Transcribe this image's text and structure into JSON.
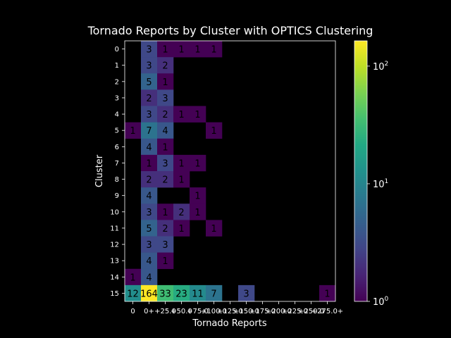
{
  "chart_data": {
    "type": "heatmap",
    "title": "Tornado Reports by Cluster with OPTICS Clustering",
    "xlabel": "Tornado Reports",
    "ylabel": "Cluster",
    "x_categories": [
      "0",
      "0+",
      "+25.0",
      "+50.0",
      "+75.0",
      "+100.0",
      "+125.0",
      "+150.0",
      "+175.0",
      "+200.0",
      "+225.0",
      "+250.0",
      "+275.0+"
    ],
    "x_tick_labels": [
      "0",
      "0+",
      "+25.0",
      "+50.0",
      "+75.0",
      "+100.0",
      "+125.0",
      "+150.0",
      "+175.0",
      "+200.0",
      "+225.0",
      "+250.0",
      "+275.0+"
    ],
    "y_categories": [
      "0",
      "1",
      "2",
      "3",
      "4",
      "5",
      "6",
      "7",
      "8",
      "9",
      "10",
      "11",
      "12",
      "13",
      "14",
      "15"
    ],
    "values": [
      [
        null,
        3,
        1,
        1,
        1,
        1,
        null,
        null,
        null,
        null,
        null,
        null,
        null
      ],
      [
        null,
        3,
        2,
        null,
        null,
        null,
        null,
        null,
        null,
        null,
        null,
        null,
        null
      ],
      [
        null,
        5,
        1,
        null,
        null,
        null,
        null,
        null,
        null,
        null,
        null,
        null,
        null
      ],
      [
        null,
        2,
        3,
        null,
        null,
        null,
        null,
        null,
        null,
        null,
        null,
        null,
        null
      ],
      [
        null,
        3,
        2,
        1,
        1,
        null,
        null,
        null,
        null,
        null,
        null,
        null,
        null
      ],
      [
        1,
        7,
        4,
        null,
        null,
        1,
        null,
        null,
        null,
        null,
        null,
        null,
        null
      ],
      [
        null,
        4,
        1,
        null,
        null,
        null,
        null,
        null,
        null,
        null,
        null,
        null,
        null
      ],
      [
        null,
        1,
        3,
        1,
        1,
        null,
        null,
        null,
        null,
        null,
        null,
        null,
        null
      ],
      [
        null,
        2,
        2,
        1,
        null,
        null,
        null,
        null,
        null,
        null,
        null,
        null,
        null
      ],
      [
        null,
        4,
        null,
        null,
        1,
        null,
        null,
        null,
        null,
        null,
        null,
        null,
        null
      ],
      [
        null,
        3,
        1,
        2,
        1,
        null,
        null,
        null,
        null,
        null,
        null,
        null,
        null
      ],
      [
        null,
        5,
        2,
        1,
        null,
        1,
        null,
        null,
        null,
        null,
        null,
        null,
        null
      ],
      [
        null,
        3,
        3,
        null,
        null,
        null,
        null,
        null,
        null,
        null,
        null,
        null,
        null
      ],
      [
        null,
        4,
        1,
        null,
        null,
        null,
        null,
        null,
        null,
        null,
        null,
        null,
        null
      ],
      [
        1,
        4,
        null,
        null,
        null,
        null,
        null,
        null,
        null,
        null,
        null,
        null,
        null
      ],
      [
        12,
        164,
        33,
        23,
        11,
        7,
        null,
        3,
        null,
        null,
        null,
        null,
        1
      ]
    ],
    "color_scale": "log",
    "colormap": "viridis",
    "vmin": 1,
    "vmax": 164,
    "colorbar_ticks": [
      {
        "value": 1,
        "base": "10",
        "exp": "0"
      },
      {
        "value": 10,
        "base": "10",
        "exp": "1"
      },
      {
        "value": 100,
        "base": "10",
        "exp": "2"
      }
    ],
    "background_color": "#000000",
    "text_color": "#ffffff",
    "cell_label_color": "#000000"
  }
}
